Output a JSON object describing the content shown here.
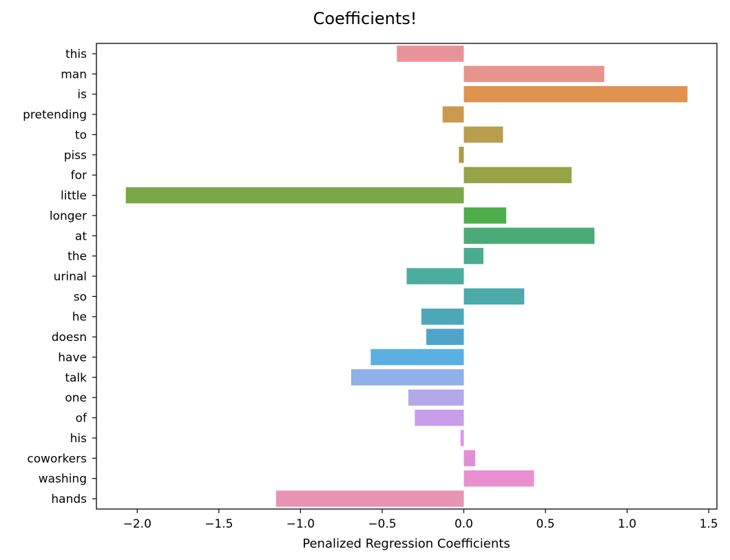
{
  "chart_data": {
    "type": "bar",
    "orientation": "horizontal",
    "title": "Coefficients!",
    "xlabel": "Penalized Regression Coefficients",
    "ylabel": "",
    "xlim": [
      -2.25,
      1.55
    ],
    "xticks": [
      -2.0,
      -1.5,
      -1.0,
      -0.5,
      0.0,
      0.5,
      1.0,
      1.5
    ],
    "xtick_labels": [
      "−2.0",
      "−1.5",
      "−1.0",
      "−0.5",
      "0.0",
      "0.5",
      "1.0",
      "1.5"
    ],
    "grid": false,
    "legend": "none",
    "categories": [
      "this",
      "man",
      "is",
      "pretending",
      "to",
      "piss",
      "for",
      "little",
      "longer",
      "at",
      "the",
      "urinal",
      "so",
      "he",
      "doesn",
      "have",
      "talk",
      "one",
      "of",
      "his",
      "coworkers",
      "washing",
      "hands"
    ],
    "values": [
      -0.41,
      0.86,
      1.37,
      -0.13,
      0.24,
      -0.03,
      0.66,
      -2.07,
      0.26,
      0.8,
      0.12,
      -0.35,
      0.37,
      -0.26,
      -0.23,
      -0.57,
      -0.69,
      -0.34,
      -0.3,
      -0.02,
      0.07,
      0.43,
      -1.15
    ],
    "colors": [
      "#e8939b",
      "#e8948a",
      "#e0934f",
      "#c99a4d",
      "#b99e4c",
      "#a6a04a",
      "#96a346",
      "#7aa848",
      "#4caf4a",
      "#4aab76",
      "#4aab90",
      "#4cad9e",
      "#4caaab",
      "#4ca8b9",
      "#4ea5c9",
      "#5bb0e2",
      "#8fb0e8",
      "#b3a8e9",
      "#c89de9",
      "#de93e6",
      "#e38fd8",
      "#e890cf",
      "#e893b4"
    ]
  }
}
